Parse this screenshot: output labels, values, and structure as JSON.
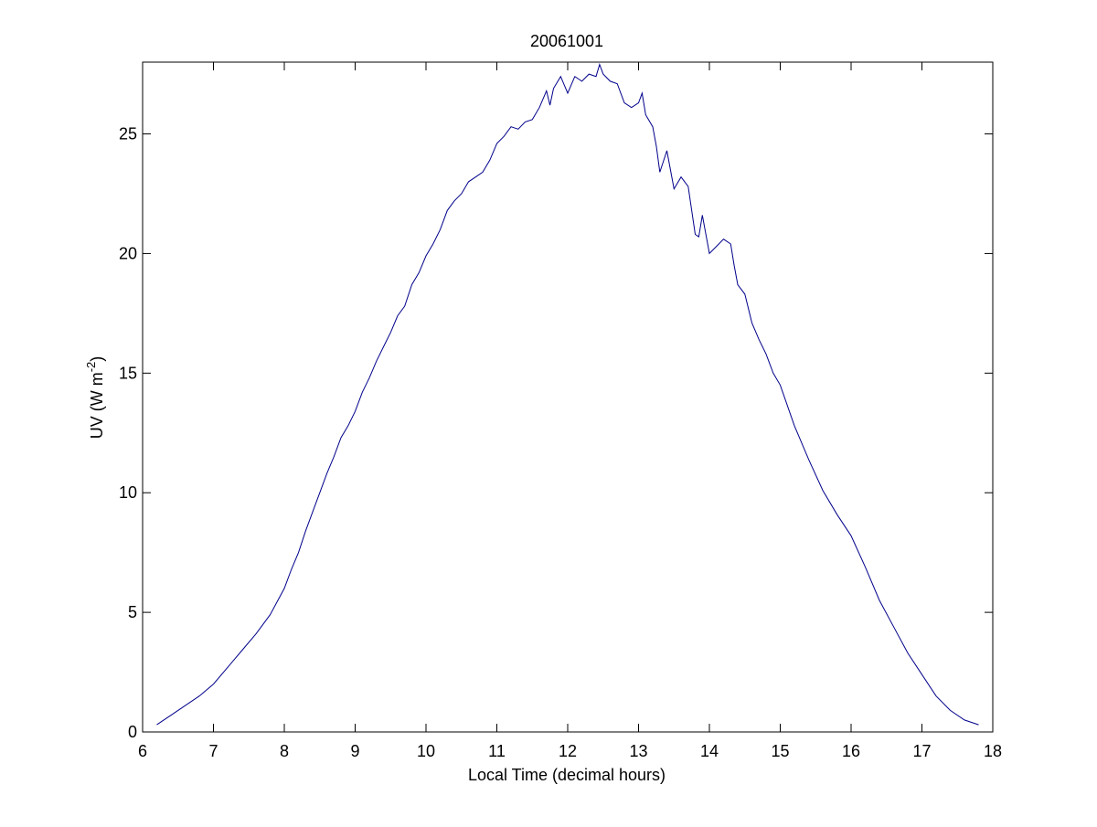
{
  "chart_data": {
    "type": "line",
    "title": "20061001",
    "xlabel": "Local Time (decimal hours)",
    "ylabel": {
      "main": "UV (W m",
      "superscript": "-2",
      "close": ")"
    },
    "xlim": [
      6,
      18
    ],
    "ylim": [
      0,
      28
    ],
    "xticks": [
      6,
      7,
      8,
      9,
      10,
      11,
      12,
      13,
      14,
      15,
      16,
      17,
      18
    ],
    "yticks": [
      0,
      5,
      10,
      15,
      20,
      25
    ],
    "grid": false,
    "line_color": "#00008b",
    "series": [
      {
        "x": [
          6.2,
          6.4,
          6.6,
          6.8,
          7.0,
          7.2,
          7.4,
          7.6,
          7.8,
          8.0,
          8.1,
          8.2,
          8.3,
          8.4,
          8.5,
          8.6,
          8.7,
          8.8,
          8.9,
          9.0,
          9.1,
          9.2,
          9.3,
          9.4,
          9.5,
          9.6,
          9.7,
          9.8,
          9.9,
          10.0,
          10.1,
          10.2,
          10.3,
          10.4,
          10.5,
          10.6,
          10.7,
          10.8,
          10.9,
          11.0,
          11.1,
          11.2,
          11.3,
          11.4,
          11.5,
          11.6,
          11.7,
          11.75,
          11.8,
          11.9,
          12.0,
          12.1,
          12.2,
          12.3,
          12.4,
          12.45,
          12.5,
          12.6,
          12.7,
          12.8,
          12.9,
          13.0,
          13.05,
          13.1,
          13.2,
          13.25,
          13.3,
          13.4,
          13.5,
          13.6,
          13.7,
          13.8,
          13.85,
          13.9,
          14.0,
          14.1,
          14.2,
          14.3,
          14.35,
          14.4,
          14.5,
          14.6,
          14.7,
          14.8,
          14.9,
          15.0,
          15.2,
          15.4,
          15.6,
          15.8,
          16.0,
          16.2,
          16.4,
          16.6,
          16.8,
          17.0,
          17.2,
          17.4,
          17.6,
          17.8
        ],
        "y": [
          0.3,
          0.7,
          1.1,
          1.5,
          2.0,
          2.7,
          3.4,
          4.1,
          4.9,
          6.0,
          6.8,
          7.5,
          8.4,
          9.2,
          10.0,
          10.8,
          11.5,
          12.3,
          12.8,
          13.4,
          14.2,
          14.8,
          15.5,
          16.1,
          16.7,
          17.4,
          17.8,
          18.7,
          19.2,
          19.9,
          20.4,
          21.0,
          21.8,
          22.2,
          22.5,
          23.0,
          23.2,
          23.4,
          23.9,
          24.6,
          24.9,
          25.3,
          25.2,
          25.5,
          25.6,
          26.1,
          26.8,
          26.2,
          26.9,
          27.4,
          26.7,
          27.4,
          27.2,
          27.5,
          27.4,
          27.9,
          27.5,
          27.2,
          27.1,
          26.3,
          26.1,
          26.3,
          26.7,
          25.8,
          25.3,
          24.5,
          23.4,
          24.3,
          22.7,
          23.2,
          22.8,
          20.8,
          20.7,
          21.6,
          20.0,
          20.3,
          20.6,
          20.4,
          19.5,
          18.7,
          18.3,
          17.1,
          16.4,
          15.8,
          15.0,
          14.5,
          12.8,
          11.4,
          10.1,
          9.1,
          8.2,
          6.9,
          5.5,
          4.4,
          3.3,
          2.4,
          1.5,
          0.9,
          0.5,
          0.3
        ]
      }
    ]
  }
}
